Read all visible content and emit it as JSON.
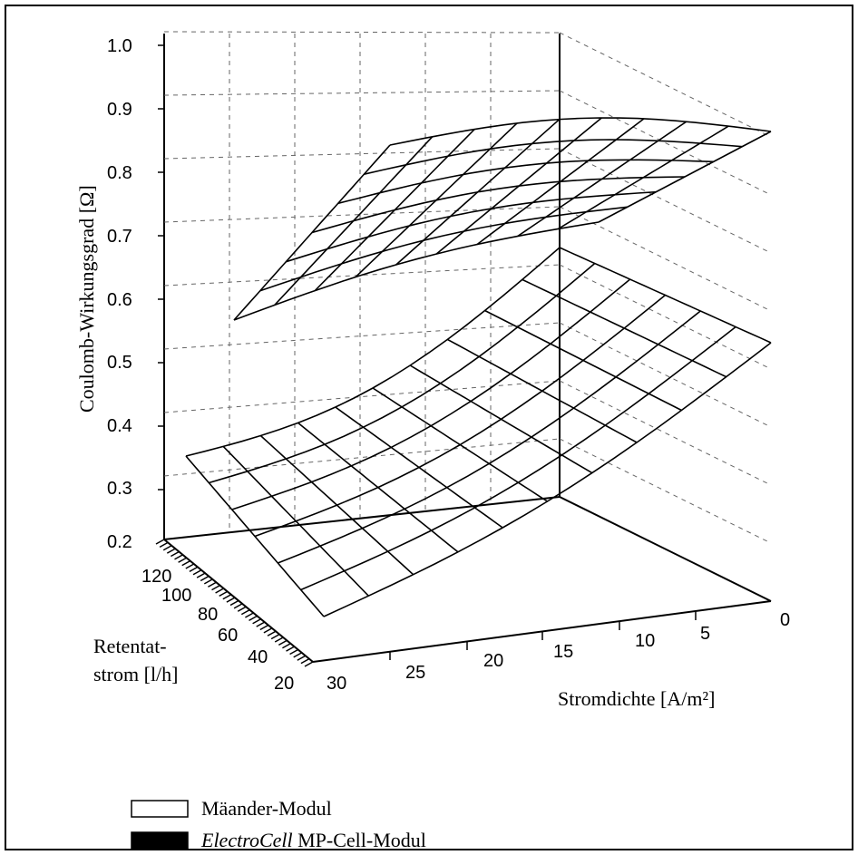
{
  "chart_data": {
    "type": "surface3d",
    "zlabel": "Coulomb-Wirkungsgrad  [Ω]",
    "xlabel": "Stromdichte  [A/m²]",
    "ylabel_line1": "Retentat-",
    "ylabel_line2": "strom  [l/h]",
    "z_ticks": [
      "0.2",
      "0.3",
      "0.4",
      "0.5",
      "0.6",
      "0.7",
      "0.8",
      "0.9",
      "1.0"
    ],
    "x_ticks": [
      "30",
      "25",
      "20",
      "15",
      "10",
      "5",
      "0"
    ],
    "y_ticks": [
      "120",
      "100",
      "80",
      "60",
      "40",
      "20"
    ],
    "x_range": [
      0,
      30
    ],
    "y_range": [
      20,
      120
    ],
    "z_range": [
      0.2,
      1.0
    ],
    "grid": true,
    "series": [
      {
        "name": "Mäander-Modul",
        "color": "#ffffff",
        "current_density": [
          30,
          25,
          20,
          15,
          10,
          5,
          0
        ],
        "retentate_flow": [
          20,
          40,
          60,
          80,
          100,
          120
        ],
        "efficiency_x": [
          0.55,
          0.62,
          0.68,
          0.73,
          0.77,
          0.8,
          0.82
        ]
      },
      {
        "name": "ElectroCell MP-Cell-Modul",
        "color": "#000000",
        "current_density": [
          30,
          25,
          20,
          15,
          10,
          5,
          0
        ],
        "retentate_flow": [
          20,
          40,
          60,
          80,
          100,
          120
        ],
        "efficiency_x": [
          0.3,
          0.33,
          0.38,
          0.44,
          0.5,
          0.55,
          0.57
        ]
      }
    ]
  },
  "legend": {
    "item1": "Mäander-Modul",
    "item2_italic": "ElectroCell",
    "item2_rest": " MP-Cell-Modul"
  }
}
